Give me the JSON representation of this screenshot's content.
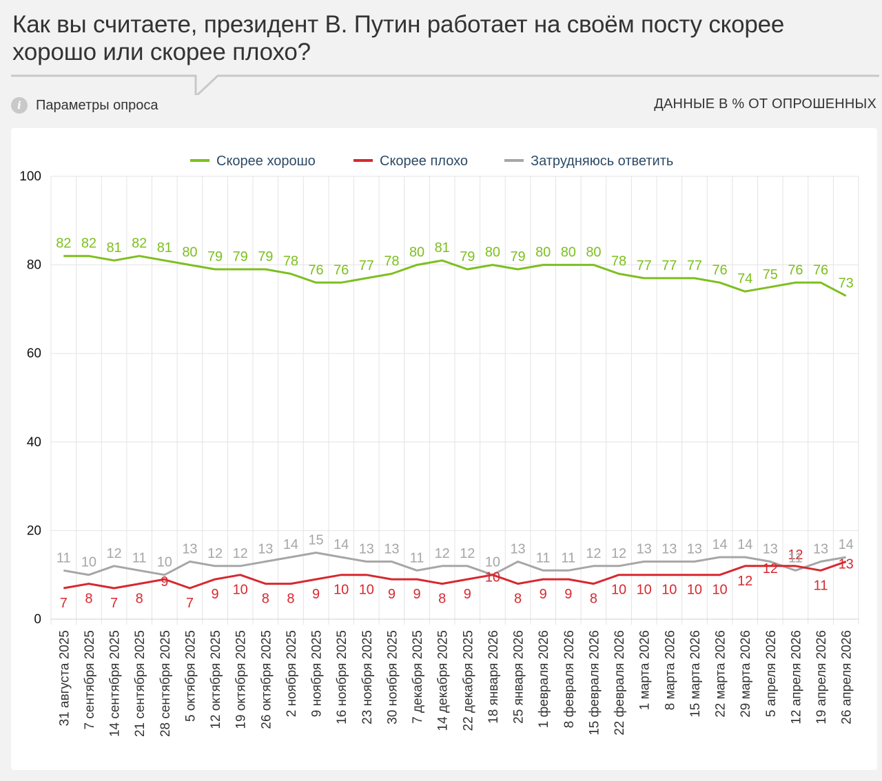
{
  "header": {
    "title": "Как вы считаете, президент В. Путин работает на своём посту скорее хорошо или скорее плохо?",
    "params_label": "Параметры опроса",
    "params_icon": "info-icon",
    "units_label": "ДАННЫЕ В % ОТ ОПРОШЕННЫХ"
  },
  "chart_data": {
    "type": "line",
    "title": "",
    "xlabel": "",
    "ylabel": "",
    "ylim": [
      0,
      100
    ],
    "yticks": [
      0,
      20,
      40,
      60,
      80,
      100
    ],
    "grid": true,
    "legend_position": "top-center",
    "categories": [
      "31 августа 2025",
      "7 сентября 2025",
      "14 сентября 2025",
      "21 сентября 2025",
      "28 сентября 2025",
      "5 октября 2025",
      "12 октября 2025",
      "19 октября 2025",
      "26 октября 2025",
      "2 ноября 2025",
      "9 ноября 2025",
      "16 ноября 2025",
      "23 ноября 2025",
      "30 ноября 2025",
      "7 декабря 2025",
      "14 декабря 2025",
      "22 декабря 2025",
      "18 января 2026",
      "25 января 2026",
      "1 февраля 2026",
      "8 февраля 2026",
      "15 февраля 2026",
      "22 февраля 2026",
      "1 марта 2026",
      "8 марта 2026",
      "15 марта 2026",
      "22 марта 2026",
      "29 марта 2026",
      "5 апреля 2026",
      "12 апреля 2026",
      "19 апреля 2026",
      "26 апреля 2026"
    ],
    "series": [
      {
        "name": "Скорее хорошо",
        "color": "#7cbf1e",
        "values": [
          82,
          82,
          81,
          82,
          81,
          80,
          79,
          79,
          79,
          78,
          76,
          76,
          77,
          78,
          80,
          81,
          79,
          80,
          79,
          80,
          80,
          80,
          78,
          77,
          77,
          77,
          76,
          74,
          75,
          76,
          76,
          73
        ]
      },
      {
        "name": "Скорее плохо",
        "color": "#d7282f",
        "values": [
          7,
          8,
          7,
          8,
          9,
          7,
          9,
          10,
          8,
          8,
          9,
          10,
          10,
          9,
          9,
          8,
          9,
          10,
          8,
          9,
          9,
          8,
          10,
          10,
          10,
          10,
          10,
          12,
          12,
          12,
          11,
          13
        ]
      },
      {
        "name": "Затрудняюсь ответить",
        "color": "#a6a6a6",
        "values": [
          11,
          10,
          12,
          11,
          10,
          13,
          12,
          12,
          13,
          14,
          15,
          14,
          13,
          13,
          11,
          12,
          12,
          10,
          13,
          11,
          11,
          12,
          12,
          13,
          13,
          13,
          14,
          14,
          13,
          11,
          13,
          14
        ]
      }
    ]
  }
}
